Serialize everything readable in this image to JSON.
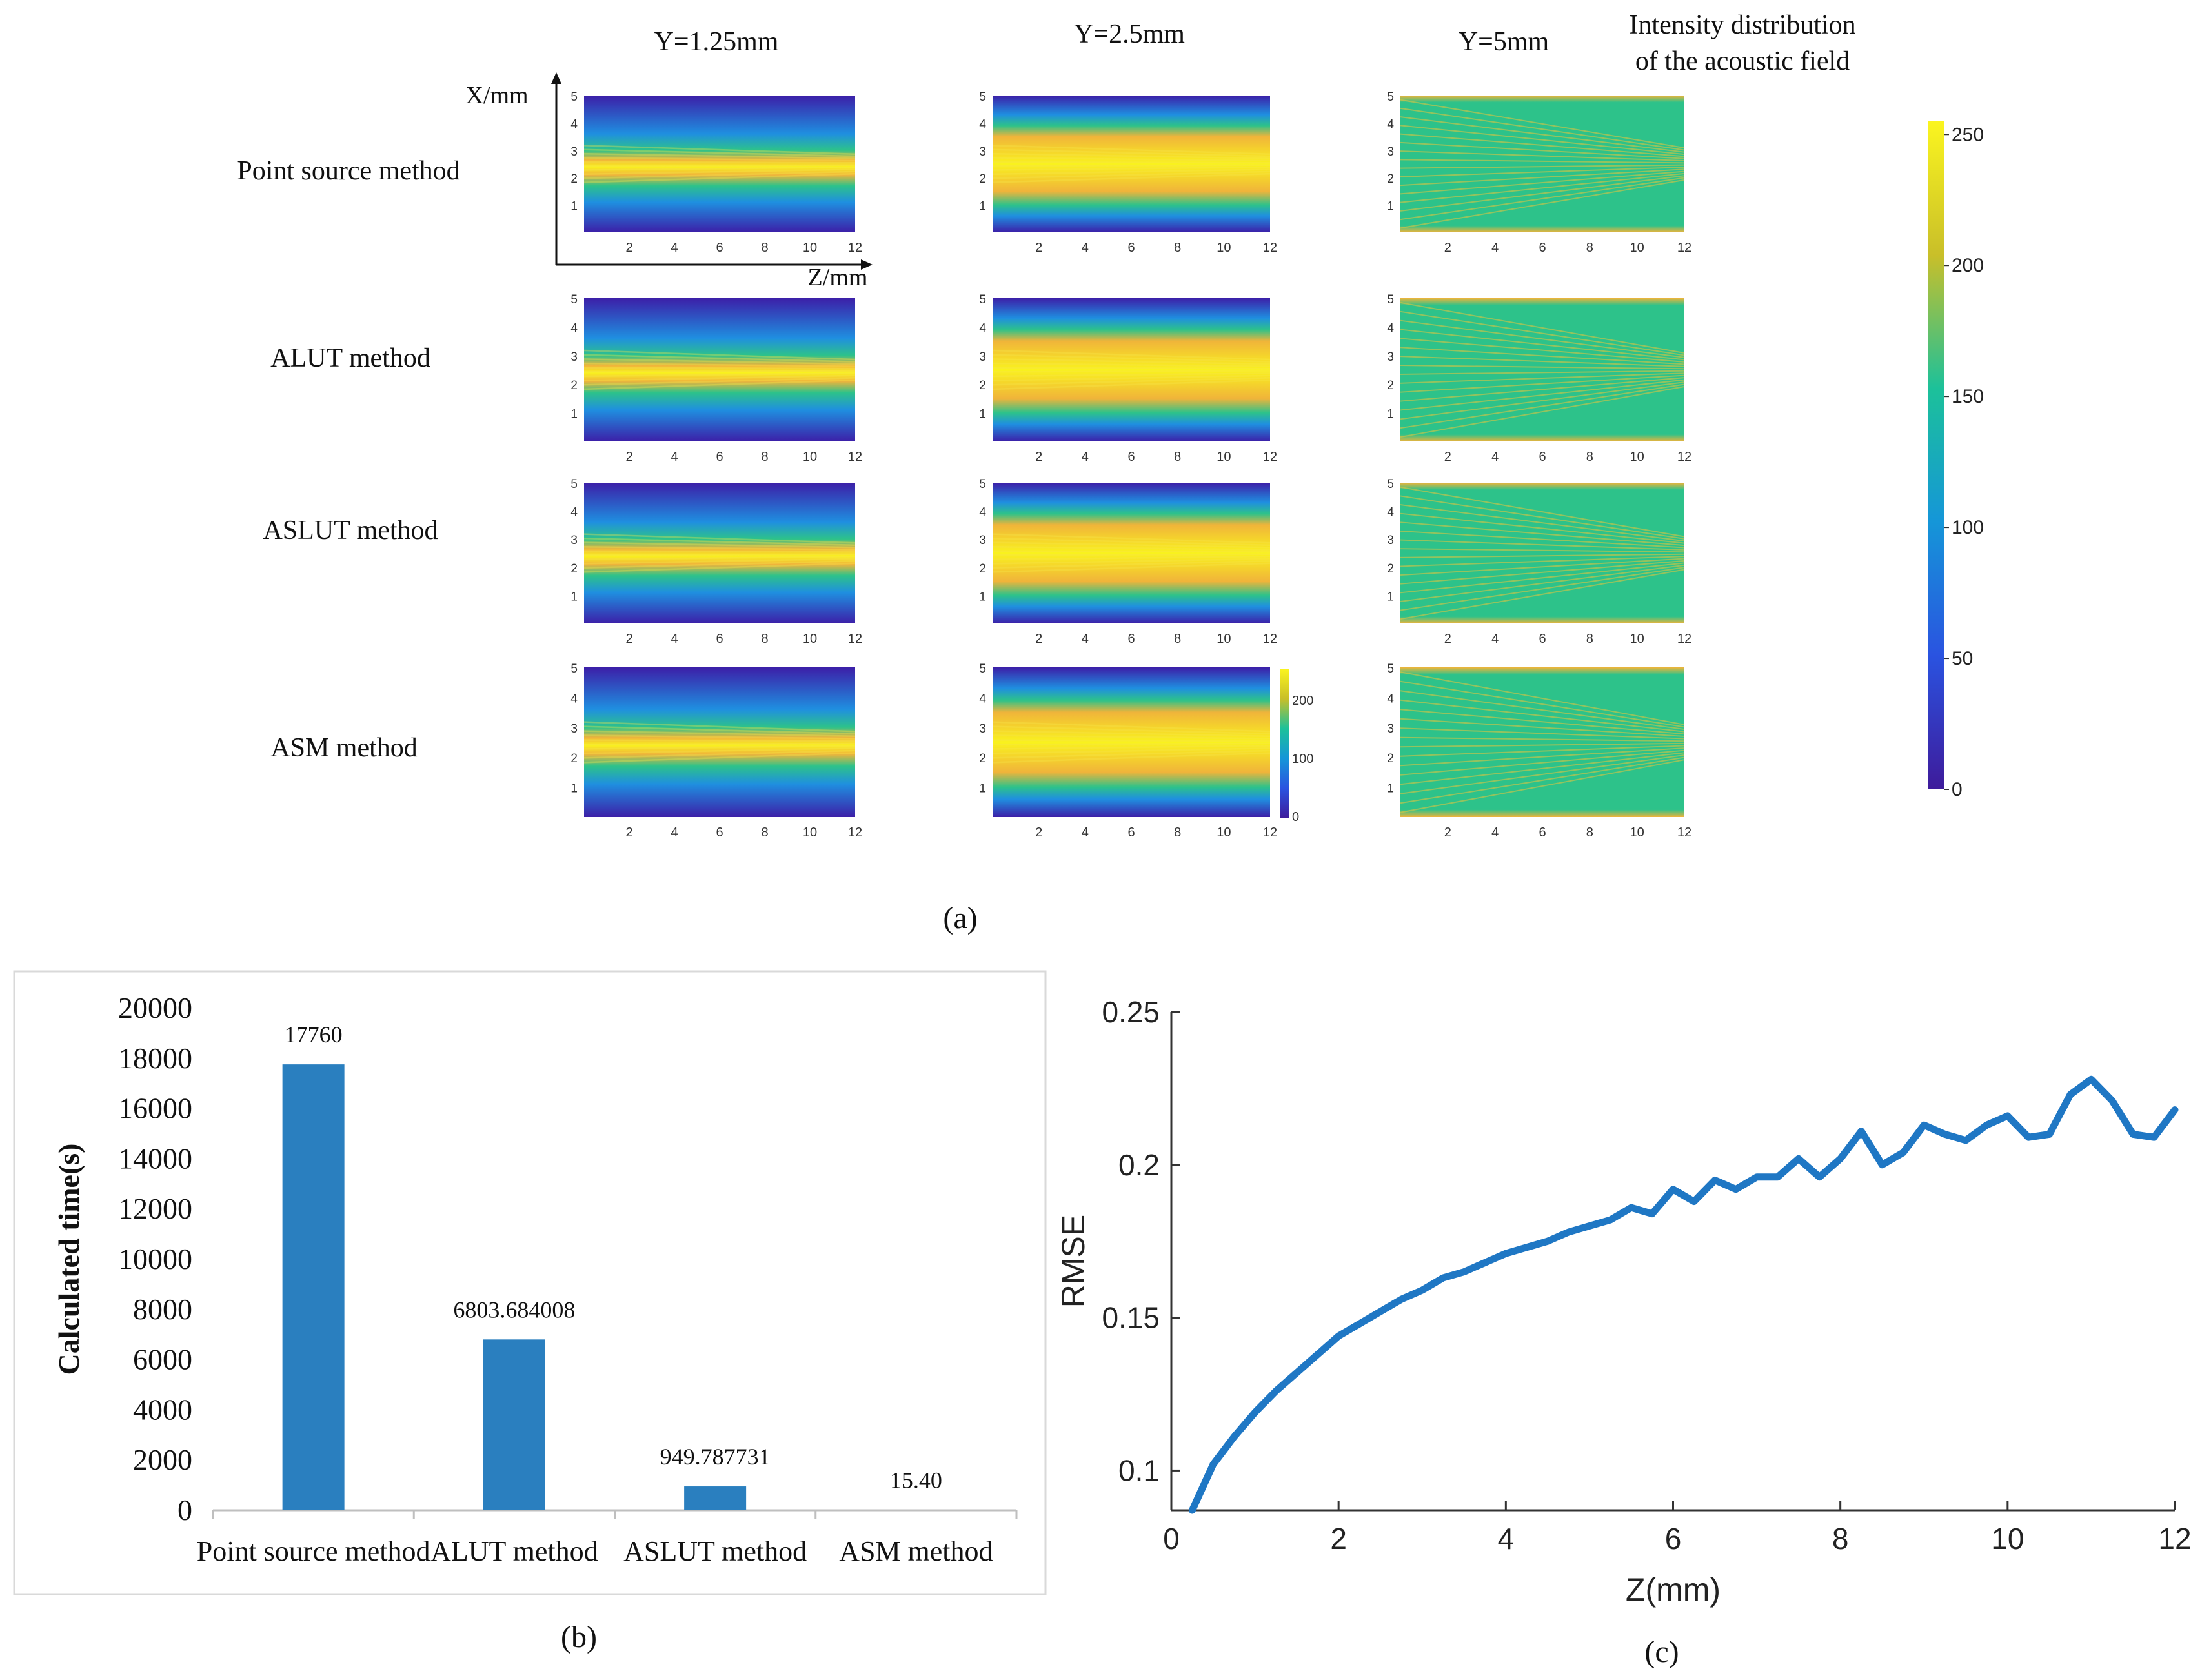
{
  "panel_a": {
    "label": "(a)",
    "column_headers": [
      "Y=1.25mm",
      "Y=2.5mm",
      "Y=5mm"
    ],
    "colorbar_title": [
      "Intensity distribution",
      "of the acoustic field"
    ],
    "row_labels": [
      "Point source method",
      "ALUT method",
      "ASLUT method",
      "ASM method"
    ],
    "x_axis_label": "X/mm",
    "z_axis_label": "Z/mm",
    "x_ticks": [
      "1",
      "2",
      "3",
      "4",
      "5"
    ],
    "z_ticks": [
      "2",
      "4",
      "6",
      "8",
      "10",
      "12"
    ],
    "colorbar_ticks": [
      "0",
      "50",
      "100",
      "150",
      "200",
      "250"
    ],
    "colorbar_range": [
      0,
      255
    ],
    "inset_colorbar_ticks": [
      "0",
      "100",
      "200"
    ],
    "colors": {
      "low": "#3c1fa8",
      "mid_low": "#1f8fe0",
      "mid": "#2dc28a",
      "mid_high": "#f0b43a",
      "high": "#f9f21e"
    }
  },
  "chart_data": [
    {
      "type": "bar",
      "panel_label": "(b)",
      "title": "",
      "ylabel": "Calculated time(s)",
      "xlabel": "",
      "categories": [
        "Point source method",
        "ALUT method",
        "ASLUT method",
        "ASM method"
      ],
      "values": [
        17760,
        6803.684008,
        949.787731,
        15.4
      ],
      "data_labels": [
        "17760",
        "6803.684008",
        "949.787731",
        "15.40"
      ],
      "ylim": [
        0,
        20000
      ],
      "yticks": [
        0,
        2000,
        4000,
        6000,
        8000,
        10000,
        12000,
        14000,
        16000,
        18000,
        20000
      ],
      "ytick_labels": [
        "0",
        "2000",
        "4000",
        "6000",
        "8000",
        "10000",
        "12000",
        "14000",
        "16000",
        "18000",
        "20000"
      ],
      "bar_color": "#2a7fbf",
      "grid": false
    },
    {
      "type": "line",
      "panel_label": "(c)",
      "title": "",
      "xlabel": "Z(mm)",
      "ylabel": "RMSE",
      "xlim": [
        0,
        12
      ],
      "ylim": [
        0.087,
        0.25
      ],
      "xticks": [
        0,
        2,
        4,
        6,
        8,
        10,
        12
      ],
      "xtick_labels": [
        "0",
        "2",
        "4",
        "6",
        "8",
        "10",
        "12"
      ],
      "yticks": [
        0.1,
        0.15,
        0.2,
        0.25
      ],
      "ytick_labels": [
        "0.1",
        "0.15",
        "0.2",
        "0.25"
      ],
      "line_color": "#1f77c4",
      "grid": false,
      "series": [
        {
          "name": "RMSE",
          "x": [
            0.25,
            0.5,
            0.75,
            1.0,
            1.25,
            1.5,
            1.75,
            2.0,
            2.25,
            2.5,
            2.75,
            3.0,
            3.25,
            3.5,
            3.75,
            4.0,
            4.25,
            4.5,
            4.75,
            5.0,
            5.25,
            5.5,
            5.75,
            6.0,
            6.25,
            6.5,
            6.75,
            7.0,
            7.25,
            7.5,
            7.75,
            8.0,
            8.25,
            8.5,
            8.75,
            9.0,
            9.25,
            9.5,
            9.75,
            10.0,
            10.25,
            10.5,
            10.75,
            11.0,
            11.25,
            11.5,
            11.75,
            12.0
          ],
          "y": [
            0.087,
            0.102,
            0.111,
            0.119,
            0.126,
            0.132,
            0.138,
            0.144,
            0.148,
            0.152,
            0.156,
            0.159,
            0.163,
            0.165,
            0.168,
            0.171,
            0.173,
            0.175,
            0.178,
            0.18,
            0.182,
            0.186,
            0.184,
            0.192,
            0.188,
            0.195,
            0.192,
            0.196,
            0.196,
            0.202,
            0.196,
            0.202,
            0.211,
            0.2,
            0.204,
            0.213,
            0.21,
            0.208,
            0.213,
            0.216,
            0.209,
            0.21,
            0.223,
            0.228,
            0.221,
            0.21,
            0.209,
            0.218
          ]
        }
      ]
    }
  ]
}
